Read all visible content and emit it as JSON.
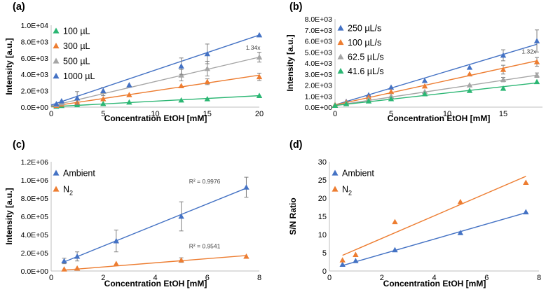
{
  "colors": {
    "blue": "#4472C4",
    "orange": "#ED7D31",
    "gray": "#A5A5A5",
    "green": "#2BB673",
    "axis": "#bfbfbf",
    "text": "#000000"
  },
  "chart_data": [
    {
      "panel_label": "(a)",
      "type": "scatter",
      "xlabel": "Concentration EtOH [mM]",
      "ylabel": "Intensity [a.u.]",
      "xlim": [
        0,
        20
      ],
      "ylim": [
        0,
        10000
      ],
      "xticks": [
        0,
        5,
        10,
        15,
        20
      ],
      "xtick_labels": [
        "0",
        "5",
        "10",
        "15",
        "20"
      ],
      "yticks": [
        0,
        2000,
        4000,
        6000,
        8000,
        10000
      ],
      "ytick_labels": [
        "0.0E+00",
        "2.0E+03",
        "4.0E+03",
        "6.0E+03",
        "8.0E+03",
        "1.0E+04"
      ],
      "legend_position": "top-left",
      "series": [
        {
          "name": "100 µL",
          "color": "#2BB673",
          "x": [
            0.5,
            1,
            2.5,
            5,
            7.5,
            12.5,
            15,
            20
          ],
          "y": [
            100,
            180,
            280,
            420,
            600,
            850,
            1000,
            1400
          ],
          "err": [
            0,
            0,
            0,
            0,
            0,
            0,
            0,
            0
          ],
          "fit": [
            50,
            1400
          ]
        },
        {
          "name": "300 µL",
          "color": "#ED7D31",
          "x": [
            0.5,
            1,
            2.5,
            5,
            7.5,
            12.5,
            15,
            20
          ],
          "y": [
            200,
            350,
            600,
            1000,
            1500,
            2600,
            3100,
            3700
          ],
          "err": [
            0,
            0,
            0,
            0,
            0,
            0,
            350,
            450
          ],
          "fit": [
            100,
            3900
          ]
        },
        {
          "name": "500 µL",
          "color": "#A5A5A5",
          "x": [
            0.5,
            1,
            2.5,
            5,
            7.5,
            12.5,
            15,
            20
          ],
          "y": [
            300,
            500,
            1100,
            1900,
            2700,
            3900,
            4700,
            6100
          ],
          "err": [
            0,
            0,
            800,
            500,
            0,
            700,
            900,
            600
          ],
          "fit": [
            150,
            6100
          ]
        },
        {
          "name": "1000 µL",
          "color": "#4472C4",
          "x": [
            0.5,
            1,
            2.5,
            5,
            7.5,
            12.5,
            15,
            20
          ],
          "y": [
            400,
            750,
            1100,
            2000,
            2700,
            5000,
            6500,
            8800
          ],
          "err": [
            0,
            0,
            0,
            0,
            0,
            1000,
            1200,
            0
          ],
          "fit": [
            250,
            8800
          ]
        }
      ],
      "annotations": [
        {
          "text": "1.34x",
          "x": 19.4,
          "y": 7000
        }
      ]
    },
    {
      "panel_label": "(b)",
      "type": "scatter",
      "xlabel": "Concentration EtOH [mM]",
      "ylabel": "Intensity [a.u.]",
      "xlim": [
        0,
        18.5
      ],
      "ylim": [
        0,
        8000
      ],
      "xticks": [
        0,
        5,
        10,
        15
      ],
      "xtick_labels": [
        "0",
        "5",
        "10",
        "15"
      ],
      "yticks": [
        0,
        1000,
        2000,
        3000,
        4000,
        5000,
        6000,
        7000,
        8000
      ],
      "ytick_labels": [
        "0.0E+00",
        "1.0E+03",
        "2.0E+03",
        "3.0E+03",
        "4.0E+03",
        "5.0E+03",
        "6.0E+03",
        "7.0E+03",
        "8.0E+03"
      ],
      "legend_position": "top-left",
      "series": [
        {
          "name": "250 µL/s",
          "color": "#4472C4",
          "x": [
            0,
            1,
            3,
            5,
            8,
            12,
            15,
            18
          ],
          "y": [
            200,
            500,
            1100,
            1800,
            2400,
            3600,
            4700,
            6000
          ],
          "err": [
            0,
            0,
            0,
            0,
            0,
            0,
            500,
            1000
          ],
          "fit": [
            200,
            5700
          ]
        },
        {
          "name": "100 µL/s",
          "color": "#ED7D31",
          "x": [
            0,
            1,
            3,
            5,
            8,
            12,
            15,
            18
          ],
          "y": [
            200,
            450,
            900,
            1400,
            1900,
            3000,
            3400,
            4100
          ],
          "err": [
            0,
            0,
            0,
            0,
            0,
            0,
            400,
            400
          ],
          "fit": [
            200,
            4200
          ]
        },
        {
          "name": "62.5 µL/s",
          "color": "#A5A5A5",
          "x": [
            0,
            1,
            3,
            5,
            8,
            12,
            15,
            18
          ],
          "y": [
            150,
            350,
            700,
            1000,
            1400,
            2000,
            2500,
            2900
          ],
          "err": [
            0,
            0,
            0,
            0,
            0,
            0,
            200,
            200
          ],
          "fit": [
            150,
            2900
          ]
        },
        {
          "name": "41.6 µL/s",
          "color": "#2BB673",
          "x": [
            0,
            1,
            3,
            5,
            8,
            12,
            15,
            18
          ],
          "y": [
            150,
            300,
            550,
            750,
            1200,
            1500,
            1700,
            2300
          ],
          "err": [
            0,
            0,
            0,
            0,
            0,
            0,
            0,
            0
          ],
          "fit": [
            150,
            2200
          ]
        }
      ],
      "annotations": [
        {
          "text": "1.32x",
          "x": 17.3,
          "y": 4850
        }
      ]
    },
    {
      "panel_label": "(c)",
      "type": "scatter",
      "xlabel": "Concentration EtOH [mM]",
      "ylabel": "Intensity [a.u.]",
      "xlim": [
        0,
        8
      ],
      "ylim": [
        0,
        1200000
      ],
      "xticks": [
        0,
        2,
        4,
        6,
        8
      ],
      "xtick_labels": [
        "0",
        "2",
        "4",
        "6",
        "8"
      ],
      "yticks": [
        0,
        200000,
        400000,
        600000,
        800000,
        1000000,
        1200000
      ],
      "ytick_labels": [
        "0.0E+00",
        "2.0E+05",
        "4.0E+05",
        "6.0E+05",
        "8.0E+05",
        "1.0E+06",
        "1.2E+06"
      ],
      "legend_position": "top-left",
      "series": [
        {
          "name": "Ambient",
          "color": "#4472C4",
          "x": [
            0.5,
            1,
            2.5,
            5,
            7.5
          ],
          "y": [
            110000,
            160000,
            330000,
            600000,
            920000
          ],
          "err": [
            30000,
            50000,
            120000,
            160000,
            110000
          ],
          "fit": [
            100000,
            910000
          ]
        },
        {
          "name": "N",
          "subscript": "2",
          "color": "#ED7D31",
          "x": [
            0.5,
            1,
            2.5,
            5,
            7.5
          ],
          "y": [
            20000,
            30000,
            80000,
            120000,
            160000
          ],
          "err": [
            0,
            0,
            0,
            25000,
            0
          ],
          "fit": [
            10000,
            170000
          ]
        }
      ],
      "annotations": [
        {
          "text": "R² = 0.9976",
          "x": 5.9,
          "y": 960000
        },
        {
          "text": "R² = 0.9541",
          "x": 5.9,
          "y": 250000
        }
      ]
    },
    {
      "panel_label": "(d)",
      "type": "scatter",
      "xlabel": "Concentration EtOH [mM]",
      "ylabel": "S/N Ratio",
      "xlim": [
        0,
        8
      ],
      "ylim": [
        0,
        30
      ],
      "xticks": [
        0,
        2,
        4,
        6,
        8
      ],
      "xtick_labels": [
        "0",
        "2",
        "4",
        "6",
        "8"
      ],
      "yticks": [
        0,
        5,
        10,
        15,
        20,
        25,
        30
      ],
      "ytick_labels": [
        "0",
        "5",
        "10",
        "15",
        "20",
        "25",
        "30"
      ],
      "legend_position": "top-left",
      "series": [
        {
          "name": "Ambient",
          "color": "#4472C4",
          "x": [
            0.5,
            1,
            2.5,
            5,
            7.5
          ],
          "y": [
            1.8,
            2.8,
            5.8,
            10.5,
            16.2
          ],
          "err": [
            0,
            0,
            0,
            0,
            0
          ],
          "fit": [
            1.5,
            16.0
          ]
        },
        {
          "name": "N",
          "subscript": "2",
          "color": "#ED7D31",
          "x": [
            0.5,
            1,
            2.5,
            5,
            7.5
          ],
          "y": [
            3.0,
            4.5,
            13.5,
            19.0,
            24.3
          ],
          "err": [
            0,
            0,
            0,
            0,
            0
          ],
          "fit": [
            4.3,
            26.0
          ]
        }
      ],
      "annotations": []
    }
  ]
}
